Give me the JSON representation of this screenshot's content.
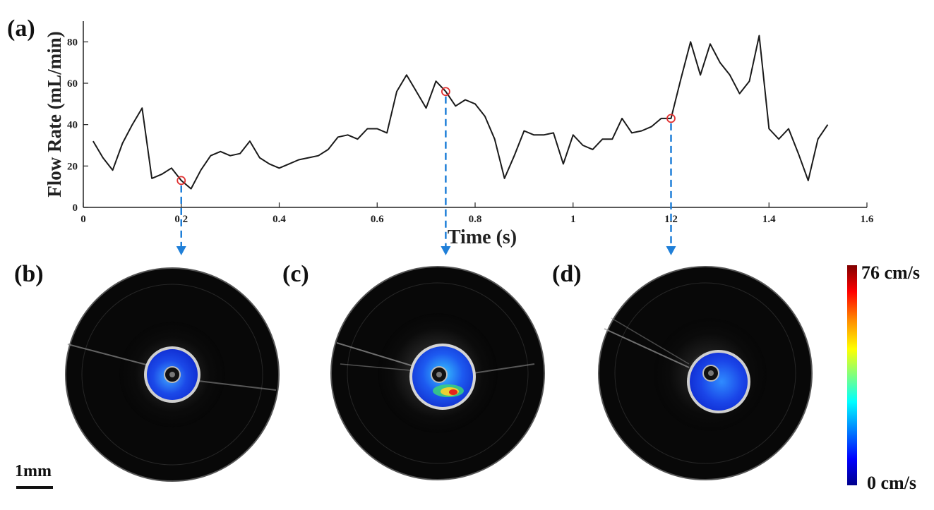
{
  "panel_labels": {
    "a": "(a)",
    "b": "(b)",
    "c": "(c)",
    "d": "(d)"
  },
  "chart_data": {
    "type": "line",
    "title": "",
    "xlabel": "Time (s)",
    "ylabel": "Flow Rate (mL/min)",
    "xlim": [
      0,
      1.6
    ],
    "ylim": [
      0,
      90
    ],
    "xticks": [
      0,
      0.2,
      0.4,
      0.6,
      0.8,
      1,
      1.2,
      1.4,
      1.6
    ],
    "xtick_labels": [
      "0",
      "0.2",
      "0.4",
      "0.6",
      "0.8",
      "1",
      "1.2",
      "1.4",
      "1.6"
    ],
    "yticks": [
      0,
      20,
      40,
      60,
      80
    ],
    "ytick_labels": [
      "0",
      "20",
      "40",
      "60",
      "80"
    ],
    "line_color": "#1a1a1a",
    "marker_color": "#e03030",
    "arrow_color": "#1f7fd8",
    "series": [
      {
        "x": [
          0.02,
          0.04,
          0.06,
          0.08,
          0.1,
          0.12,
          0.14,
          0.16,
          0.18,
          0.2,
          0.22,
          0.24,
          0.26,
          0.28,
          0.3,
          0.32,
          0.34,
          0.36,
          0.38,
          0.4,
          0.42,
          0.44,
          0.46,
          0.48,
          0.5,
          0.52,
          0.54,
          0.56,
          0.58,
          0.6,
          0.62,
          0.64,
          0.66,
          0.68,
          0.7,
          0.72,
          0.74,
          0.76,
          0.78,
          0.8,
          0.82,
          0.84,
          0.86,
          0.88,
          0.9,
          0.92,
          0.94,
          0.96,
          0.98,
          1.0,
          1.02,
          1.04,
          1.06,
          1.08,
          1.1,
          1.12,
          1.14,
          1.16,
          1.18,
          1.2,
          1.22,
          1.24,
          1.26,
          1.28,
          1.3,
          1.32,
          1.34,
          1.36,
          1.38,
          1.4,
          1.42,
          1.44,
          1.46,
          1.48,
          1.5,
          1.52
        ],
        "values": [
          32,
          24,
          18,
          31,
          40,
          48,
          14,
          16,
          19,
          13,
          9,
          18,
          25,
          27,
          25,
          26,
          32,
          24,
          21,
          19,
          21,
          23,
          24,
          25,
          28,
          34,
          35,
          33,
          38,
          38,
          36,
          56,
          64,
          56,
          48,
          61,
          56,
          49,
          52,
          50,
          44,
          33,
          14,
          25,
          37,
          35,
          35,
          36,
          21,
          35,
          30,
          28,
          33,
          33,
          43,
          36,
          37,
          39,
          43,
          43,
          62,
          80,
          64,
          79,
          70,
          64,
          55,
          61,
          83,
          38,
          33,
          38,
          26,
          13,
          33,
          40
        ]
      }
    ],
    "highlighted_points": [
      {
        "x": 0.2,
        "y": 13
      },
      {
        "x": 0.74,
        "y": 56
      },
      {
        "x": 1.2,
        "y": 43
      }
    ]
  },
  "colorbar": {
    "max_label": "76 cm/s",
    "min_label": "0 cm/s"
  },
  "scalebar": {
    "label": "1mm"
  }
}
